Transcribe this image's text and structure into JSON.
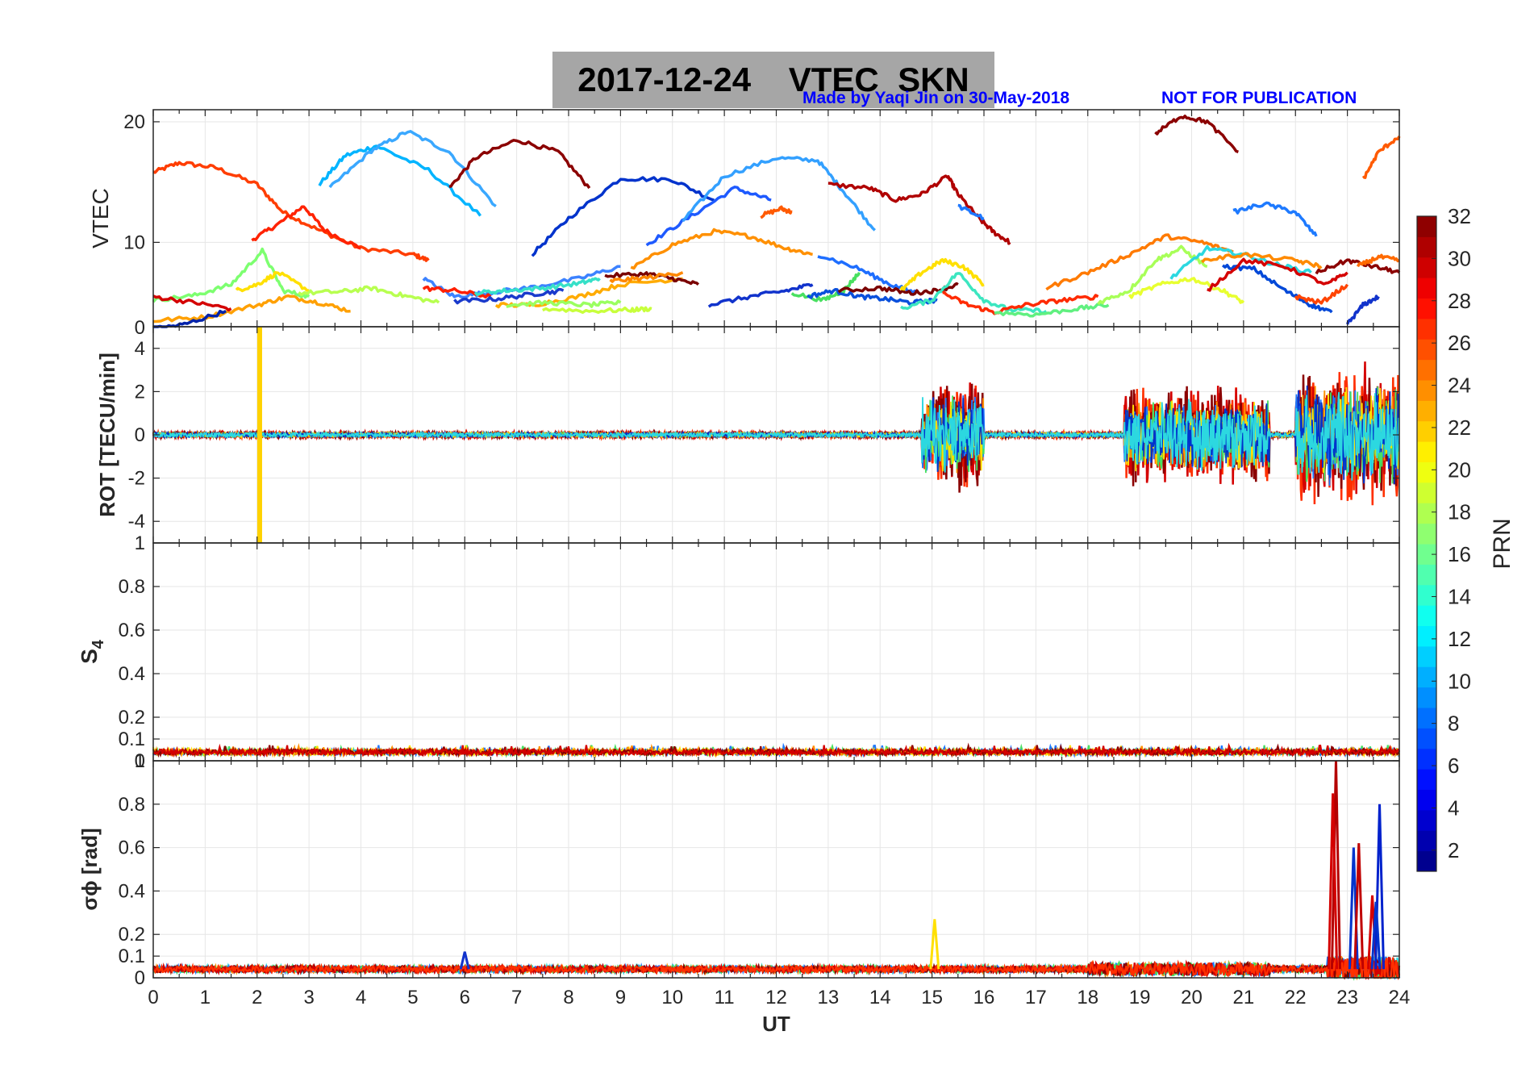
{
  "header": {
    "title": "2017-12-24    VTEC  SKN",
    "credit": "Made by Yaqi Jin on 30-May-2018",
    "notice": "NOT FOR PUBLICATION"
  },
  "colors": {
    "credit": "#0000ff",
    "title_box": "#a6a6a6",
    "grid": "#e6e6e6"
  },
  "chart_data": [
    {
      "type": "line",
      "panel": "VTEC",
      "ylabel": "VTEC",
      "xlim": [
        0,
        24
      ],
      "ylim": [
        3,
        21
      ],
      "yticks": [
        10,
        20
      ],
      "series": [
        {
          "color": "#ff3d00",
          "x": [
            0,
            0.5,
            1.2,
            2.0,
            2.5,
            3.2,
            4.0,
            5.0,
            5.3
          ],
          "y": [
            15.8,
            16.6,
            16.2,
            14.8,
            12.5,
            11,
            9.5,
            9,
            8.5
          ]
        },
        {
          "color": "#ff2200",
          "x": [
            1.9,
            2.4,
            2.9,
            3.3,
            4.0
          ],
          "y": [
            10.2,
            11.5,
            13.0,
            11.0,
            9.5
          ]
        },
        {
          "color": "#00b4ff",
          "x": [
            3.2,
            3.7,
            4.3,
            5.3,
            6.3
          ],
          "y": [
            14.8,
            17.2,
            18.0,
            16.0,
            12.2
          ]
        },
        {
          "color": "#3aa8ff",
          "x": [
            3.4,
            4.2,
            4.9,
            5.7,
            6.6
          ],
          "y": [
            14.5,
            17.6,
            19.2,
            17.5,
            13.0
          ]
        },
        {
          "color": "#8b0000",
          "x": [
            5.7,
            6.2,
            7.0,
            7.8,
            8.4
          ],
          "y": [
            14.5,
            17.0,
            18.5,
            17.5,
            14.5
          ]
        },
        {
          "color": "#0033cc",
          "x": [
            7.3,
            8.0,
            9.0,
            10.0,
            10.8
          ],
          "y": [
            9.0,
            12.0,
            15.3,
            15.2,
            13.5
          ]
        },
        {
          "color": "#1e5aff",
          "x": [
            9.5,
            10.3,
            11.2,
            11.9
          ],
          "y": [
            9.8,
            12.0,
            14.5,
            13.5
          ]
        },
        {
          "color": "#33a0ff",
          "x": [
            10.2,
            11.0,
            12.0,
            12.8,
            13.3,
            13.9
          ],
          "y": [
            11.8,
            15.5,
            17.0,
            16.8,
            14.2,
            11.0
          ]
        },
        {
          "color": "#ff5a00",
          "x": [
            11.7,
            12.1,
            12.3
          ],
          "y": [
            12.2,
            12.8,
            12.5
          ]
        },
        {
          "color": "#b00000",
          "x": [
            13.0,
            13.8,
            14.3,
            14.8,
            15.3,
            15.5,
            15.9,
            16.2,
            16.5
          ],
          "y": [
            14.8,
            14.5,
            13.5,
            14.0,
            15.5,
            14.0,
            12.0,
            10.8,
            10.0
          ]
        },
        {
          "color": "#1e78ff",
          "x": [
            15.5,
            16.0
          ],
          "y": [
            13.0,
            12.0
          ]
        },
        {
          "color": "#ff9000",
          "x": [
            9.2,
            10.0,
            10.8,
            11.5,
            12.2,
            12.7
          ],
          "y": [
            7.8,
            9.8,
            10.9,
            10.5,
            9.5,
            9.0
          ]
        },
        {
          "color": "#ffa000",
          "x": [
            0,
            1.0,
            2.0,
            2.6,
            3.2,
            3.8
          ],
          "y": [
            3.5,
            3.8,
            4.8,
            5.5,
            5.0,
            4.3
          ]
        },
        {
          "color": "#7dff70",
          "x": [
            0,
            0.8,
            1.5,
            2.1,
            2.5,
            3.0
          ],
          "y": [
            5.2,
            5.6,
            6.5,
            9.3,
            6.0,
            5.5
          ]
        },
        {
          "color": "#ffe000",
          "x": [
            1.6,
            2.0,
            2.4,
            3.0
          ],
          "y": [
            6.0,
            6.5,
            7.5,
            6.0
          ]
        },
        {
          "color": "#b8ff50",
          "x": [
            2.8,
            3.6,
            4.2,
            4.8,
            5.5
          ],
          "y": [
            5.8,
            5.9,
            6.2,
            5.6,
            5.0
          ]
        },
        {
          "color": "#d40000",
          "x": [
            0,
            0.8,
            1.5
          ],
          "y": [
            5.5,
            5.0,
            4.5
          ]
        },
        {
          "color": "#0022aa",
          "x": [
            0,
            0.6,
            1.4
          ],
          "y": [
            2.8,
            3.2,
            4.3
          ]
        },
        {
          "color": "#3c82ff",
          "x": [
            5.2,
            5.8,
            6.4,
            7.2,
            8.2,
            9.0
          ],
          "y": [
            7.0,
            5.5,
            5.8,
            6.2,
            7.0,
            8.0
          ]
        },
        {
          "color": "#ff1f00",
          "x": [
            5.2,
            5.8,
            6.5
          ],
          "y": [
            6.2,
            6.0,
            5.5
          ]
        },
        {
          "color": "#1a3acc",
          "x": [
            5.8,
            6.6,
            7.3,
            7.9
          ],
          "y": [
            5.1,
            5.3,
            5.7,
            6.0
          ]
        },
        {
          "color": "#36e0c8",
          "x": [
            6.2,
            6.8,
            7.5,
            8.2,
            8.6
          ],
          "y": [
            5.8,
            6.0,
            6.2,
            6.6,
            7.0
          ]
        },
        {
          "color": "#ffab00",
          "x": [
            6.6,
            7.3,
            8.2,
            9.0,
            10.2
          ],
          "y": [
            4.8,
            4.8,
            5.5,
            6.5,
            7.0
          ]
        },
        {
          "color": "#9aff60",
          "x": [
            6.8,
            7.6,
            8.4,
            9.0
          ],
          "y": [
            4.8,
            5.0,
            4.8,
            5.0
          ]
        },
        {
          "color": "#c8ff3c",
          "x": [
            7.5,
            8.4,
            9.2,
            9.6
          ],
          "y": [
            4.5,
            4.3,
            4.4,
            4.5
          ]
        },
        {
          "color": "#7a0000",
          "x": [
            8.7,
            9.5,
            10.0,
            10.5
          ],
          "y": [
            7.2,
            7.4,
            7.0,
            6.5
          ]
        },
        {
          "color": "#ff8800",
          "x": [
            8.8,
            9.4,
            10.2
          ],
          "y": [
            6.8,
            7.0,
            7.5
          ]
        },
        {
          "color": "#1133cc",
          "x": [
            10.7,
            11.5,
            12.2,
            12.7
          ],
          "y": [
            4.8,
            5.5,
            6.0,
            6.5
          ]
        },
        {
          "color": "#1e6eff",
          "x": [
            12.8,
            13.6,
            14.2,
            14.7
          ],
          "y": [
            9.0,
            7.8,
            6.5,
            5.8
          ]
        },
        {
          "color": "#48e060",
          "x": [
            12.3,
            12.9,
            13.3,
            13.6
          ],
          "y": [
            5.8,
            5.2,
            6.0,
            7.5
          ]
        },
        {
          "color": "#0a50dc",
          "x": [
            12.6,
            13.1,
            13.6,
            14.1,
            14.6,
            15.1
          ],
          "y": [
            5.5,
            6.0,
            5.5,
            5.3,
            5.0,
            5.2
          ]
        },
        {
          "color": "#7a0000",
          "x": [
            13.2,
            14.0,
            14.6,
            15.1,
            15.5
          ],
          "y": [
            6.0,
            6.2,
            5.8,
            6.0,
            6.5
          ]
        },
        {
          "color": "#ffe000",
          "x": [
            14.4,
            14.8,
            15.2,
            15.6,
            16.0
          ],
          "y": [
            6.0,
            7.5,
            8.5,
            8.0,
            6.5
          ]
        },
        {
          "color": "#3ce6c0",
          "x": [
            14.4,
            15.0,
            15.5,
            16.0,
            16.5,
            17.2
          ],
          "y": [
            4.5,
            5.2,
            7.5,
            5.2,
            4.4,
            4.3
          ]
        },
        {
          "color": "#ff2a00",
          "x": [
            15.2,
            15.7,
            16.2,
            16.8,
            17.5,
            18.2
          ],
          "y": [
            5.8,
            4.8,
            4.2,
            4.8,
            5.2,
            5.5
          ]
        },
        {
          "color": "#60f080",
          "x": [
            16.2,
            17.0,
            17.8,
            18.4
          ],
          "y": [
            4.2,
            4.0,
            4.5,
            4.8
          ]
        },
        {
          "color": "#ff7a00",
          "x": [
            17.2,
            18.0,
            18.8,
            19.5,
            20.2,
            20.8
          ],
          "y": [
            6.2,
            7.5,
            9.0,
            10.5,
            10.0,
            9.2
          ]
        },
        {
          "color": "#a8ff58",
          "x": [
            18.2,
            18.8,
            19.3,
            19.8,
            20.3
          ],
          "y": [
            5.0,
            6.0,
            8.5,
            9.5,
            8.0
          ]
        },
        {
          "color": "#e8ff30",
          "x": [
            18.8,
            19.4,
            20.0,
            20.6,
            21.0
          ],
          "y": [
            5.5,
            6.5,
            7.0,
            6.0,
            5.0
          ]
        },
        {
          "color": "#2cd8e0",
          "x": [
            19.6,
            20.3,
            21.0,
            21.6,
            22.3
          ],
          "y": [
            7.0,
            9.5,
            9.0,
            8.2,
            7.5
          ]
        },
        {
          "color": "#ff8a00",
          "x": [
            20.2,
            21.0,
            22.0,
            22.5
          ],
          "y": [
            8.5,
            9.0,
            8.5,
            8.0
          ]
        },
        {
          "color": "#0048d8",
          "x": [
            20.6,
            21.2,
            21.8,
            22.3,
            22.7
          ],
          "y": [
            8.0,
            7.8,
            6.0,
            4.8,
            4.2
          ]
        },
        {
          "color": "#d40000",
          "x": [
            20.3,
            21.0,
            21.8,
            22.6,
            23.0
          ],
          "y": [
            6.0,
            8.5,
            8.0,
            6.5,
            7.5
          ]
        },
        {
          "color": "#ff4400",
          "x": [
            22.0,
            22.5,
            23.0
          ],
          "y": [
            5.5,
            5.0,
            6.5
          ]
        },
        {
          "color": "#1e7aff",
          "x": [
            20.8,
            21.4,
            22.0,
            22.4
          ],
          "y": [
            12.5,
            13.2,
            12.5,
            10.5
          ]
        },
        {
          "color": "#8b0000",
          "x": [
            22.4,
            23.0,
            23.5,
            24.0
          ],
          "y": [
            7.5,
            8.5,
            8.0,
            7.5
          ]
        },
        {
          "color": "#ff6a00",
          "x": [
            23.2,
            23.6,
            24.0
          ],
          "y": [
            8.0,
            8.8,
            8.5
          ]
        },
        {
          "color": "#1133cc",
          "x": [
            23.0,
            23.3,
            23.6
          ],
          "y": [
            3.2,
            4.8,
            5.5
          ]
        },
        {
          "color": "#8b0000",
          "x": [
            19.3,
            19.8,
            20.3,
            20.9
          ],
          "y": [
            19.0,
            20.5,
            20.0,
            17.5
          ]
        },
        {
          "color": "#ff5a00",
          "x": [
            23.3,
            23.6,
            24.0
          ],
          "y": [
            15.2,
            17.5,
            18.8
          ]
        }
      ]
    },
    {
      "type": "line",
      "panel": "ROT",
      "ylabel": "ROT [TECU/min]",
      "xlim": [
        0,
        24
      ],
      "ylim": [
        -5,
        5
      ],
      "yticks": [
        -4,
        -2,
        0,
        2,
        4
      ],
      "description": "rate of TEC for all PRNs; near zero except spike at 2.05 UT and enhanced activity 14.8-16, 18.7-21.5, 22-24 UT",
      "spike": {
        "x": 2.05,
        "ymin": -5,
        "ymax": 5,
        "color": "#ffd200"
      },
      "activity": [
        {
          "x0": 14.8,
          "x1": 16.0,
          "amp": 2.8
        },
        {
          "x0": 18.7,
          "x1": 21.5,
          "amp": 2.5
        },
        {
          "x0": 22.0,
          "x1": 24.0,
          "amp": 3.5
        }
      ]
    },
    {
      "type": "line",
      "panel": "S4",
      "ylabel": "S4",
      "xlim": [
        0,
        24
      ],
      "ylim": [
        0,
        1
      ],
      "yticks": [
        0.1,
        0.2,
        0.4,
        0.6,
        0.8,
        1
      ],
      "baseline": 0.04
    },
    {
      "type": "line",
      "panel": "sigma_phi",
      "ylabel": "σϕ [rad]",
      "xlabel": "UT",
      "xlim": [
        0,
        24
      ],
      "ylim": [
        0,
        1
      ],
      "yticks": [
        0,
        0.1,
        0.2,
        0.4,
        0.6,
        0.8,
        1
      ],
      "xticks": [
        0,
        1,
        2,
        3,
        4,
        5,
        6,
        7,
        8,
        9,
        10,
        11,
        12,
        13,
        14,
        15,
        16,
        17,
        18,
        19,
        20,
        21,
        22,
        23,
        24
      ],
      "baseline": 0.04,
      "peaks": [
        {
          "x": 22.78,
          "y": 1.0,
          "color": "#b40000"
        },
        {
          "x": 22.72,
          "y": 0.85,
          "color": "#d40000"
        },
        {
          "x": 23.12,
          "y": 0.6,
          "color": "#0033cc"
        },
        {
          "x": 23.22,
          "y": 0.62,
          "color": "#c00000"
        },
        {
          "x": 23.48,
          "y": 0.38,
          "color": "#d40000"
        },
        {
          "x": 23.62,
          "y": 0.8,
          "color": "#0022cc"
        },
        {
          "x": 23.55,
          "y": 0.35,
          "color": "#0033cc"
        },
        {
          "x": 15.05,
          "y": 0.27,
          "color": "#ffe000"
        },
        {
          "x": 6.0,
          "y": 0.12,
          "color": "#1133cc"
        }
      ]
    },
    {
      "type": "heatmap",
      "panel": "colorbar",
      "label": "PRN",
      "range": [
        1,
        32
      ],
      "ticks": [
        2,
        4,
        6,
        8,
        10,
        12,
        14,
        16,
        18,
        20,
        22,
        24,
        26,
        28,
        30,
        32
      ],
      "colormap": "jet"
    }
  ]
}
